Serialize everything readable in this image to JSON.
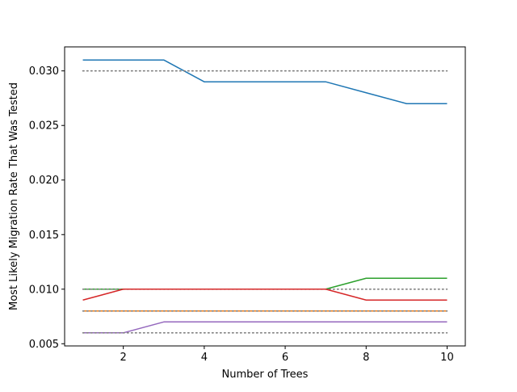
{
  "chart_data": {
    "type": "line",
    "title": "",
    "xlabel": "Number of Trees",
    "ylabel": "Most Likely Migration Rate That Was Tested",
    "xlim": [
      0.55,
      10.45
    ],
    "ylim": [
      0.0048,
      0.0322
    ],
    "xticks": [
      2,
      4,
      6,
      8,
      10
    ],
    "xtick_labels": [
      "2",
      "4",
      "6",
      "8",
      "10"
    ],
    "yticks": [
      0.005,
      0.01,
      0.015,
      0.02,
      0.025,
      0.03
    ],
    "ytick_labels": [
      "0.005",
      "0.010",
      "0.015",
      "0.020",
      "0.025",
      "0.030"
    ],
    "grid": false,
    "legend": "none",
    "x": [
      1,
      2,
      3,
      4,
      5,
      6,
      7,
      8,
      9,
      10
    ],
    "series": [
      {
        "color": "#1f77b4",
        "style": "solid",
        "values": [
          0.031,
          0.031,
          0.031,
          0.029,
          0.029,
          0.029,
          0.029,
          0.028,
          0.027,
          0.027
        ]
      },
      {
        "color": "#808080",
        "style": "dotted",
        "values": [
          0.03,
          0.03,
          0.03,
          0.03,
          0.03,
          0.03,
          0.03,
          0.03,
          0.03,
          0.03
        ]
      },
      {
        "color": "#2ca02c",
        "style": "solid",
        "values": [
          0.01,
          0.01,
          0.01,
          0.01,
          0.01,
          0.01,
          0.01,
          0.011,
          0.011,
          0.011
        ]
      },
      {
        "color": "#808080",
        "style": "dotted",
        "values": [
          0.01,
          0.01,
          0.01,
          0.01,
          0.01,
          0.01,
          0.01,
          0.01,
          0.01,
          0.01
        ]
      },
      {
        "color": "#d62728",
        "style": "solid",
        "values": [
          0.009,
          0.01,
          0.01,
          0.01,
          0.01,
          0.01,
          0.01,
          0.009,
          0.009,
          0.009
        ]
      },
      {
        "color": "#ff7f0e",
        "style": "solid",
        "values": [
          0.008,
          0.008,
          0.008,
          0.008,
          0.008,
          0.008,
          0.008,
          0.008,
          0.008,
          0.008
        ]
      },
      {
        "color": "#808080",
        "style": "dotted",
        "values": [
          0.008,
          0.008,
          0.008,
          0.008,
          0.008,
          0.008,
          0.008,
          0.008,
          0.008,
          0.008
        ]
      },
      {
        "color": "#9467bd",
        "style": "solid",
        "values": [
          0.006,
          0.006,
          0.007,
          0.007,
          0.007,
          0.007,
          0.007,
          0.007,
          0.007,
          0.007
        ]
      },
      {
        "color": "#808080",
        "style": "dotted",
        "values": [
          0.006,
          0.006,
          0.006,
          0.006,
          0.006,
          0.006,
          0.006,
          0.006,
          0.006,
          0.006
        ]
      }
    ]
  }
}
